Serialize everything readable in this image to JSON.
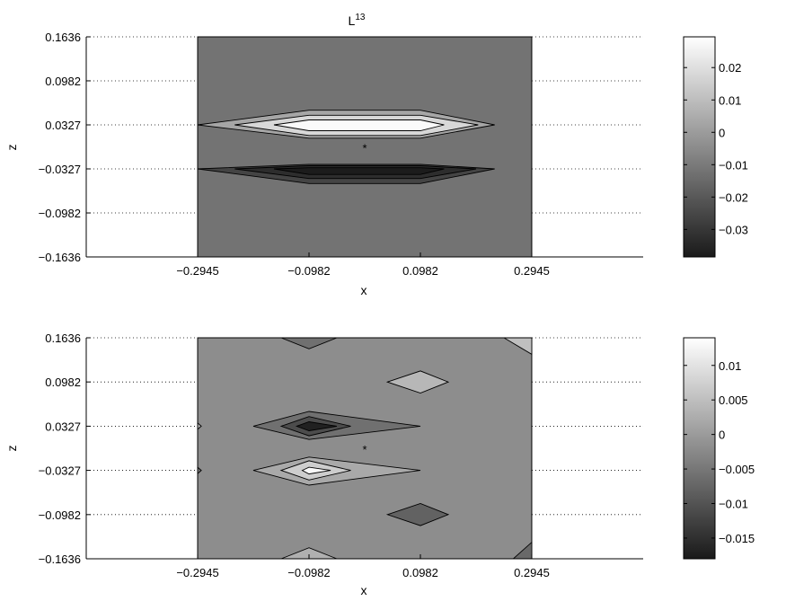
{
  "chart_data": [
    {
      "type": "contour",
      "title": "L",
      "title_superscript": "13",
      "xlabel": "x",
      "ylabel": "z",
      "xlim": [
        -0.4909,
        0.4909
      ],
      "ylim": [
        -0.1636,
        0.1636
      ],
      "xticks": [
        "-0.2945",
        "-0.0982",
        "0.0982",
        "0.2945"
      ],
      "yticks": [
        "0.1636",
        "0.0982",
        "0.0327",
        "-0.0327",
        "-0.0982",
        "-0.1636"
      ],
      "data_region_x": [
        -0.2945,
        0.2945
      ],
      "marker": {
        "symbol": "*",
        "x": 0.0,
        "z": 0.0
      },
      "colorbar": {
        "ticks": [
          "0.02",
          "0.01",
          "0",
          "-0.01",
          "-0.02",
          "-0.03"
        ],
        "range": [
          -0.0385,
          0.0295
        ],
        "colormap": "gray"
      },
      "background_value": -0.012,
      "contours": [
        {
          "level": 0.0,
          "value": 0.003,
          "points": [
            [
              -0.2945,
              0.0327
            ],
            [
              -0.0982,
              0.0545
            ],
            [
              0.0982,
              0.0545
            ],
            [
              0.2291,
              0.0327
            ],
            [
              0.0982,
              0.013
            ],
            [
              -0.0982,
              0.013
            ]
          ]
        },
        {
          "level": 0.01,
          "value": 0.018,
          "points": [
            [
              -0.2291,
              0.0327
            ],
            [
              -0.0982,
              0.047
            ],
            [
              0.0982,
              0.047
            ],
            [
              0.2,
              0.0327
            ],
            [
              0.0982,
              0.017
            ],
            [
              -0.0982,
              0.017
            ]
          ]
        },
        {
          "level": 0.02,
          "value": 0.028,
          "points": [
            [
              -0.16,
              0.0327
            ],
            [
              -0.0982,
              0.04
            ],
            [
              0.0982,
              0.04
            ],
            [
              0.14,
              0.0327
            ],
            [
              0.0982,
              0.024
            ],
            [
              -0.0982,
              0.024
            ]
          ]
        },
        {
          "level": -0.02,
          "value": -0.026,
          "points": [
            [
              -0.2945,
              -0.0327
            ],
            [
              -0.0982,
              -0.0259
            ],
            [
              0.0982,
              -0.0259
            ],
            [
              0.2291,
              -0.0327
            ],
            [
              0.0982,
              -0.0545
            ],
            [
              -0.0982,
              -0.0545
            ]
          ]
        },
        {
          "level": -0.03,
          "value": -0.033,
          "points": [
            [
              -0.2291,
              -0.0327
            ],
            [
              -0.0982,
              -0.028
            ],
            [
              0.0982,
              -0.028
            ],
            [
              0.1964,
              -0.0327
            ],
            [
              0.0982,
              -0.047
            ],
            [
              -0.0982,
              -0.047
            ]
          ]
        },
        {
          "level": -0.035,
          "value": -0.038,
          "points": [
            [
              -0.16,
              -0.0327
            ],
            [
              -0.0982,
              -0.031
            ],
            [
              0.0982,
              -0.031
            ],
            [
              0.14,
              -0.0327
            ],
            [
              0.0982,
              -0.041
            ],
            [
              -0.0982,
              -0.041
            ]
          ]
        }
      ]
    },
    {
      "type": "contour",
      "title": "",
      "xlabel": "x",
      "ylabel": "z",
      "xlim": [
        -0.4909,
        0.4909
      ],
      "ylim": [
        -0.1636,
        0.1636
      ],
      "xticks": [
        "-0.2945",
        "-0.0982",
        "0.0982",
        "0.2945"
      ],
      "yticks": [
        "0.1636",
        "0.0982",
        "0.0327",
        "-0.0327",
        "-0.0982",
        "-0.1636"
      ],
      "data_region_x": [
        -0.2945,
        0.2945
      ],
      "marker": {
        "symbol": "*",
        "x": 0.0,
        "z": 0.0
      },
      "colorbar": {
        "ticks": [
          "0.01",
          "0.005",
          "0",
          "-0.005",
          "-0.01",
          "-0.015"
        ],
        "range": [
          -0.018,
          0.014
        ],
        "colormap": "gray"
      },
      "background_value": -0.002,
      "contours": [
        {
          "level": -0.005,
          "value": -0.006,
          "points": [
            [
              -0.1964,
              0.0327
            ],
            [
              -0.0982,
              0.0545
            ],
            [
              0.0982,
              0.0327
            ],
            [
              -0.0982,
              0.013
            ]
          ]
        },
        {
          "level": -0.01,
          "value": -0.011,
          "points": [
            [
              -0.1473,
              0.0327
            ],
            [
              -0.0982,
              0.047
            ],
            [
              -0.0245,
              0.0327
            ],
            [
              -0.0982,
              0.0185
            ]
          ]
        },
        {
          "level": -0.015,
          "value": -0.017,
          "points": [
            [
              -0.12,
              0.0327
            ],
            [
              -0.0982,
              0.0392
            ],
            [
              -0.0491,
              0.0327
            ],
            [
              -0.0982,
              0.026
            ]
          ]
        },
        {
          "level": 0.0,
          "value": 0.002,
          "points": [
            [
              -0.1964,
              -0.0327
            ],
            [
              -0.0982,
              -0.013
            ],
            [
              0.0982,
              -0.0327
            ],
            [
              -0.0982,
              -0.0545
            ]
          ]
        },
        {
          "level": 0.005,
          "value": 0.007,
          "points": [
            [
              -0.1473,
              -0.0327
            ],
            [
              -0.0982,
              -0.0185
            ],
            [
              -0.0245,
              -0.0327
            ],
            [
              -0.0982,
              -0.047
            ]
          ]
        },
        {
          "level": 0.01,
          "value": 0.013,
          "points": [
            [
              -0.11,
              -0.0327
            ],
            [
              -0.0982,
              -0.028
            ],
            [
              -0.06,
              -0.0327
            ],
            [
              -0.0982,
              -0.038
            ]
          ]
        },
        {
          "level": 0.0,
          "value": 0.004,
          "points": [
            [
              0.04,
              0.0982
            ],
            [
              0.0982,
              0.1145
            ],
            [
              0.1473,
              0.0982
            ],
            [
              0.0982,
              0.0818
            ]
          ]
        },
        {
          "level": -0.005,
          "value": -0.008,
          "points": [
            [
              0.04,
              -0.0982
            ],
            [
              0.0982,
              -0.0818
            ],
            [
              0.1473,
              -0.0982
            ],
            [
              0.0982,
              -0.1145
            ]
          ]
        },
        {
          "level": -0.005,
          "value": -0.006,
          "points": [
            [
              -0.1473,
              0.1636
            ],
            [
              -0.0982,
              0.1473
            ],
            [
              -0.0491,
              0.1636
            ]
          ]
        },
        {
          "level": 0.0,
          "value": 0.003,
          "points": [
            [
              -0.1473,
              -0.1636
            ],
            [
              -0.0982,
              -0.1473
            ],
            [
              -0.0491,
              -0.1636
            ]
          ]
        },
        {
          "level": 0.0,
          "value": 0.005,
          "points": [
            [
              0.2454,
              0.1636
            ],
            [
              0.2945,
              0.1636
            ],
            [
              0.2945,
              0.1391
            ]
          ]
        },
        {
          "level": -0.005,
          "value": -0.007,
          "points": [
            [
              0.2945,
              -0.1391
            ],
            [
              0.2945,
              -0.1636
            ],
            [
              0.2618,
              -0.1636
            ]
          ]
        },
        {
          "level": 0.0,
          "value": 0.003,
          "points": [
            [
              -0.2945,
              0.0375
            ],
            [
              -0.288,
              0.0327
            ],
            [
              -0.2945,
              0.028
            ]
          ]
        },
        {
          "level": -0.005,
          "value": -0.006,
          "points": [
            [
              -0.2945,
              -0.028
            ],
            [
              -0.288,
              -0.0327
            ],
            [
              -0.2945,
              -0.0375
            ]
          ]
        }
      ]
    }
  ]
}
